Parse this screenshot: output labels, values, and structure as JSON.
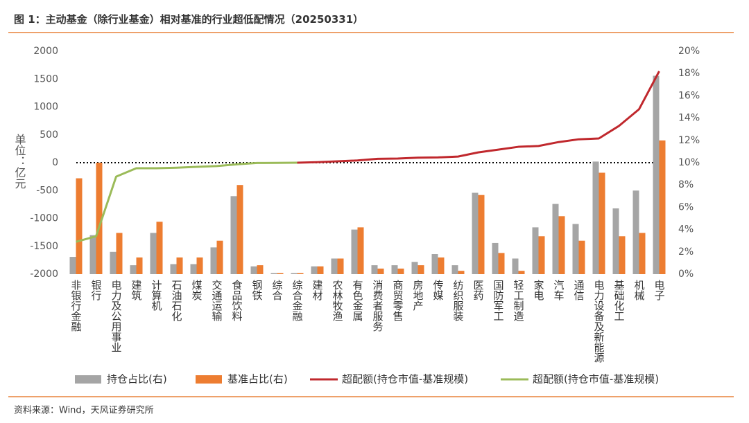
{
  "chart_data": {
    "type": "bar_line",
    "title": "图 1：主动基金（除行业基金）相对基准的行业超低配情况（20250331）",
    "source": "资料来源：Wind，天风证券研究所",
    "y_label": "单位：亿元",
    "categories": [
      "非银行金融",
      "银行",
      "电力及公用事业",
      "建筑",
      "计算机",
      "石油石化",
      "煤炭",
      "交通运输",
      "食品饮料",
      "钢铁",
      "综合",
      "综合金融",
      "建材",
      "农林牧渔",
      "有色金属",
      "消费者服务",
      "商贸零售",
      "房地产",
      "传媒",
      "纺织服装",
      "医药",
      "国防军工",
      "轻工制造",
      "家电",
      "汽车",
      "通信",
      "电力设备及新能源",
      "基础化工",
      "机械",
      "电子"
    ],
    "ylim": [
      -2000,
      2000
    ],
    "yticks": [
      -2000,
      -1500,
      -1000,
      -500,
      0,
      500,
      1000,
      1500,
      2000
    ],
    "y2lim": [
      0,
      20
    ],
    "y2ticks": [
      {
        "value": 0,
        "label": "0%"
      },
      {
        "value": 2,
        "label": "2%"
      },
      {
        "value": 4,
        "label": "4%"
      },
      {
        "value": 6,
        "label": "6%"
      },
      {
        "value": 8,
        "label": "8%"
      },
      {
        "value": 10,
        "label": "10%"
      },
      {
        "value": 12,
        "label": "12%"
      },
      {
        "value": 14,
        "label": "14%"
      },
      {
        "value": 16,
        "label": "16%"
      },
      {
        "value": 18,
        "label": "18%"
      },
      {
        "value": 20,
        "label": "20%"
      }
    ],
    "series": [
      {
        "name": "持仓占比(右)",
        "kind": "bar",
        "axis": "y2",
        "color": "#a5a5a5",
        "values": [
          1.55,
          3.5,
          2.0,
          0.8,
          3.7,
          0.9,
          0.9,
          2.4,
          7.0,
          0.7,
          0.1,
          0.1,
          0.7,
          1.4,
          4.0,
          0.8,
          0.8,
          1.1,
          1.8,
          0.8,
          7.3,
          2.8,
          1.4,
          4.2,
          6.3,
          4.5,
          10.1,
          5.9,
          7.5,
          17.8
        ]
      },
      {
        "name": "基准占比(右)",
        "kind": "bar",
        "axis": "y2",
        "color": "#ed7d31",
        "values": [
          8.6,
          10.0,
          3.7,
          1.5,
          4.7,
          1.5,
          1.5,
          3.0,
          8.0,
          0.8,
          0.1,
          0.1,
          0.7,
          1.4,
          4.2,
          0.5,
          0.5,
          0.8,
          1.5,
          0.3,
          7.1,
          1.9,
          0.3,
          3.4,
          5.2,
          3.0,
          9.1,
          3.4,
          3.7,
          12.0
        ]
      },
      {
        "name": "超配额(持仓市值-基准规模)",
        "kind": "line",
        "color": "#c0282d",
        "values": [
          null,
          null,
          null,
          null,
          null,
          null,
          null,
          null,
          null,
          null,
          null,
          0,
          10,
          25,
          40,
          70,
          75,
          90,
          95,
          110,
          185,
          235,
          285,
          300,
          370,
          420,
          435,
          660,
          960,
          1640
        ]
      },
      {
        "name": "超配额(持仓市值-基准规模)",
        "kind": "line",
        "color": "#9bbb59",
        "values": [
          -1420,
          -1320,
          -250,
          -100,
          -100,
          -90,
          -75,
          -60,
          -30,
          -5,
          -3,
          0,
          null,
          null,
          null,
          null,
          null,
          null,
          null,
          null,
          null,
          null,
          null,
          null,
          null,
          null,
          null,
          null,
          null,
          null
        ]
      }
    ]
  }
}
